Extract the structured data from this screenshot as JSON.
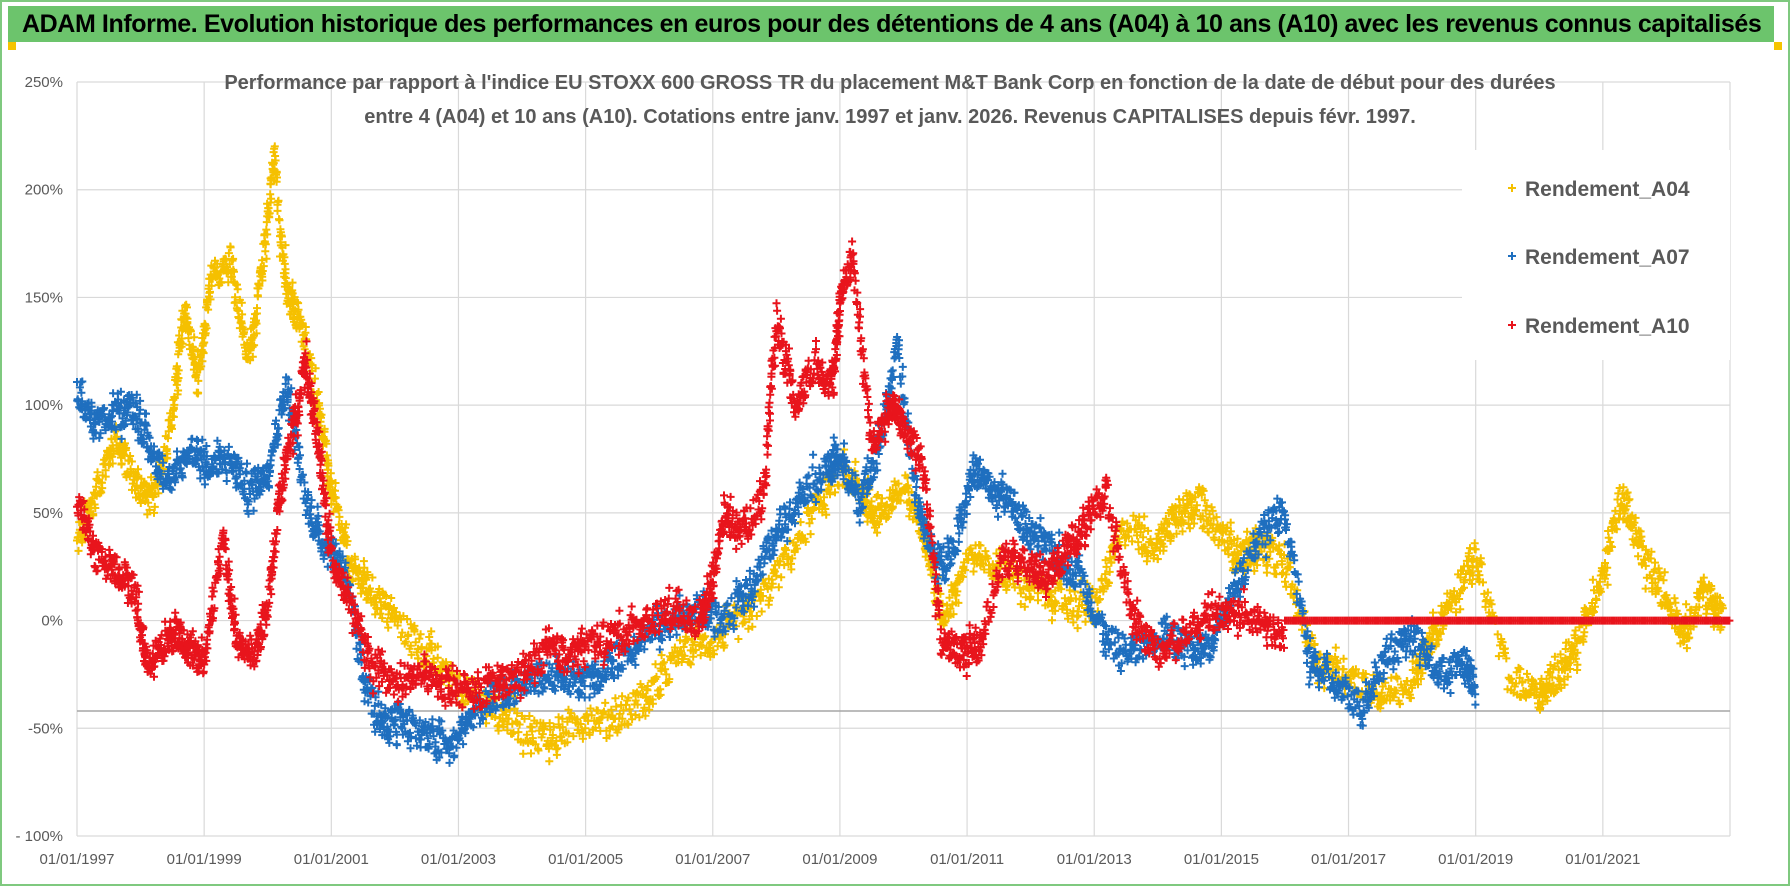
{
  "banner": {
    "title": "ADAM Informe. Evolution historique des performances en euros pour des détentions de 4 ans (A04) à 10 ans (A10) avec les revenus connus capitalisés"
  },
  "colors": {
    "A04": "#f5c000",
    "A07": "#1f6fbf",
    "A10": "#e8141c",
    "grid": "#d9d9d9",
    "banner": "#6cc46c"
  },
  "chart_data": {
    "type": "scatter",
    "title_lines": [
      "Performance par rapport à l'indice EU STOXX 600 GROSS TR  du placement M&T Bank Corp en fonction de la date de début pour des durées",
      "entre 4 (A04) et 10 ans (A10).  Cotations entre janv. 1997 et janv. 2026. Revenus CAPITALISES depuis févr. 1997."
    ],
    "xlabel": "",
    "ylabel": "",
    "x_range": [
      1997.0,
      2023.0
    ],
    "ylim": [
      -100,
      250
    ],
    "y_ticks": [
      250,
      200,
      150,
      100,
      50,
      0,
      -50,
      -100
    ],
    "y_tick_labels": [
      "250%",
      "200%",
      "150%",
      "100%",
      "50%",
      "0%",
      "-50%",
      "- 100%"
    ],
    "x_ticks": [
      1997,
      1999,
      2001,
      2003,
      2005,
      2007,
      2009,
      2011,
      2013,
      2015,
      2017,
      2019,
      2021
    ],
    "x_tick_labels": [
      "01/01/1997",
      "01/01/1999",
      "01/01/2001",
      "01/01/2003",
      "01/01/2005",
      "01/01/2007",
      "01/01/2009",
      "01/01/2011",
      "01/01/2013",
      "01/01/2015",
      "01/01/2017",
      "01/01/2019",
      "01/01/2021"
    ],
    "reference_line_y": -42,
    "legend": [
      "Rendement_A04",
      "Rendement_A07",
      "Rendement_A10"
    ],
    "legend_position": "top-right",
    "marker": "+",
    "series": [
      {
        "name": "Rendement_A04",
        "x": [
          1997.0,
          1997.3,
          1997.6,
          1997.9,
          1998.2,
          1998.5,
          1998.7,
          1998.9,
          1999.1,
          1999.4,
          1999.7,
          1999.9,
          2000.1,
          2000.3,
          2000.5,
          2000.8,
          2001.0,
          2001.3,
          2001.6,
          2002.0,
          2002.5,
          2003.0,
          2003.5,
          2004.0,
          2004.5,
          2005.0,
          2005.5,
          2006.0,
          2006.5,
          2007.0,
          2007.5,
          2008.0,
          2008.5,
          2009.0,
          2009.3,
          2009.6,
          2010.0,
          2010.3,
          2010.6,
          2011.0,
          2011.5,
          2012.0,
          2012.5,
          2013.0,
          2013.5,
          2014.0,
          2014.3,
          2014.6,
          2015.0,
          2015.3,
          2015.6,
          2016.0,
          2016.5,
          2017.0,
          2017.5,
          2018.0,
          2018.3,
          2018.6,
          2019.0,
          2019.5,
          2020.0,
          2020.3,
          2020.6,
          2021.0,
          2021.3,
          2021.6,
          2022.0,
          2022.3,
          2022.6,
          2022.9
        ],
        "values": [
          35,
          60,
          85,
          65,
          55,
          95,
          145,
          110,
          155,
          170,
          120,
          160,
          215,
          150,
          140,
          100,
          60,
          25,
          15,
          0,
          -15,
          -30,
          -40,
          -50,
          -55,
          -45,
          -45,
          -35,
          -15,
          -10,
          0,
          20,
          45,
          70,
          60,
          50,
          60,
          45,
          0,
          30,
          25,
          15,
          10,
          5,
          45,
          35,
          50,
          55,
          40,
          30,
          35,
          25,
          -20,
          -25,
          -35,
          -30,
          -10,
          10,
          30,
          -25,
          -35,
          -25,
          -10,
          20,
          60,
          30,
          10,
          -5,
          15,
          0
        ]
      },
      {
        "name": "Rendement_A07",
        "x": [
          1997.0,
          1997.3,
          1997.6,
          1997.9,
          1998.2,
          1998.5,
          1998.8,
          1999.1,
          1999.4,
          1999.7,
          2000.0,
          2000.3,
          2000.6,
          2000.9,
          2001.2,
          2001.5,
          2001.8,
          2002.1,
          2002.5,
          2002.9,
          2003.2,
          2003.6,
          2004.0,
          2004.4,
          2004.8,
          2005.2,
          2005.6,
          2006.0,
          2006.4,
          2006.8,
          2007.2,
          2007.6,
          2008.0,
          2008.4,
          2008.8,
          2009.0,
          2009.3,
          2009.6,
          2009.9,
          2010.2,
          2010.5,
          2010.8,
          2011.1,
          2011.4,
          2011.7,
          2012.0,
          2012.4,
          2012.8,
          2013.2,
          2013.6,
          2014.0,
          2014.4,
          2014.8,
          2015.2,
          2015.6,
          2016.0,
          2016.4,
          2016.8,
          2017.2,
          2017.6,
          2018.0,
          2018.4,
          2018.8,
          2019.0
        ],
        "values": [
          105,
          90,
          95,
          100,
          75,
          65,
          80,
          70,
          75,
          60,
          70,
          110,
          55,
          35,
          25,
          -25,
          -50,
          -45,
          -55,
          -58,
          -45,
          -35,
          -30,
          -25,
          -30,
          -25,
          -15,
          -5,
          0,
          5,
          0,
          15,
          40,
          60,
          70,
          75,
          55,
          80,
          125,
          60,
          25,
          35,
          70,
          60,
          55,
          40,
          30,
          20,
          -10,
          -15,
          -5,
          -10,
          -15,
          15,
          40,
          50,
          -20,
          -30,
          -40,
          -15,
          -5,
          -25,
          -20,
          -30
        ]
      },
      {
        "name": "Rendement_A10",
        "x": [
          1997.0,
          1997.3,
          1997.6,
          1997.9,
          1998.1,
          1998.4,
          1998.6,
          1998.8,
          1999.0,
          1999.3,
          1999.5,
          1999.8,
          2000.0,
          2000.2,
          2000.4,
          2000.6,
          2000.8,
          2001.0,
          2001.3,
          2001.6,
          2002.0,
          2002.4,
          2002.8,
          2003.2,
          2003.6,
          2004.0,
          2004.4,
          2004.8,
          2005.2,
          2005.6,
          2006.0,
          2006.4,
          2006.8,
          2007.0,
          2007.2,
          2007.5,
          2007.8,
          2008.0,
          2008.3,
          2008.6,
          2008.9,
          2009.0,
          2009.2,
          2009.5,
          2009.8,
          2010.0,
          2010.3,
          2010.6,
          2010.9,
          2011.2,
          2011.6,
          2012.0,
          2012.3,
          2012.6,
          2012.9,
          2013.2,
          2013.6,
          2014.0,
          2014.4,
          2014.8,
          2015.2,
          2015.6,
          2016.0
        ],
        "values": [
          55,
          30,
          25,
          15,
          -20,
          -10,
          -5,
          -15,
          -20,
          40,
          -10,
          -15,
          5,
          60,
          90,
          120,
          80,
          30,
          10,
          -20,
          -30,
          -25,
          -30,
          -35,
          -30,
          -25,
          -15,
          -15,
          -10,
          -5,
          0,
          5,
          0,
          20,
          50,
          40,
          60,
          140,
          100,
          120,
          110,
          150,
          170,
          80,
          100,
          90,
          75,
          -10,
          -15,
          -10,
          30,
          25,
          20,
          35,
          45,
          60,
          0,
          -15,
          -5,
          0,
          5,
          0,
          -10
        ]
      }
    ]
  }
}
